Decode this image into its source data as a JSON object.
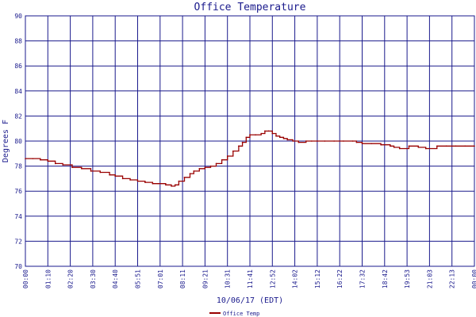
{
  "chart_data": {
    "type": "line",
    "title": "Office Temperature",
    "xlabel": "10/06/17 (EDT)",
    "ylabel": "Degrees F",
    "ylim": [
      70,
      90
    ],
    "yticks": [
      70,
      72,
      74,
      76,
      78,
      80,
      82,
      84,
      86,
      88,
      90
    ],
    "xticks": [
      "00:00",
      "01:10",
      "02:20",
      "03:30",
      "04:40",
      "05:51",
      "07:01",
      "08:11",
      "09:21",
      "10:31",
      "11:41",
      "12:52",
      "14:02",
      "15:12",
      "16:22",
      "17:32",
      "18:42",
      "19:53",
      "21:03",
      "22:13",
      "00:00"
    ],
    "grid": true,
    "legend": "bottom-left",
    "colors": {
      "line": "#990000",
      "grid": "#1a1a8c",
      "text": "#1a1a8c"
    },
    "series": [
      {
        "name": "Office Temp",
        "x": [
          0.0,
          0.4,
          0.8,
          1.2,
          1.6,
          2.0,
          2.5,
          3.0,
          3.5,
          4.0,
          4.5,
          4.8,
          5.2,
          5.6,
          6.0,
          6.4,
          6.8,
          7.1,
          7.5,
          7.8,
          8.0,
          8.2,
          8.5,
          8.8,
          9.0,
          9.3,
          9.6,
          9.9,
          10.2,
          10.5,
          10.8,
          11.1,
          11.4,
          11.6,
          11.8,
          12.0,
          12.3,
          12.6,
          12.8,
          13.0,
          13.2,
          13.4,
          13.6,
          13.8,
          14.0,
          14.3,
          14.6,
          15.0,
          15.3,
          15.6,
          16.0,
          16.5,
          17.0,
          17.5,
          17.7,
          18.0,
          18.5,
          19.0,
          19.5,
          19.7,
          20.0,
          20.5,
          21.0,
          21.4,
          22.0,
          22.5,
          23.0,
          23.5,
          24.0
        ],
        "values": [
          78.6,
          78.6,
          78.5,
          78.4,
          78.2,
          78.1,
          77.9,
          77.8,
          77.6,
          77.5,
          77.3,
          77.2,
          77.0,
          76.9,
          76.8,
          76.7,
          76.6,
          76.6,
          76.5,
          76.4,
          76.5,
          76.8,
          77.1,
          77.4,
          77.6,
          77.8,
          77.9,
          78.0,
          78.2,
          78.5,
          78.8,
          79.2,
          79.6,
          79.9,
          80.3,
          80.5,
          80.5,
          80.6,
          80.8,
          80.8,
          80.6,
          80.4,
          80.3,
          80.2,
          80.1,
          80.0,
          79.9,
          80.0,
          80.0,
          80.0,
          80.0,
          80.0,
          80.0,
          80.0,
          79.9,
          79.8,
          79.8,
          79.7,
          79.6,
          79.5,
          79.4,
          79.6,
          79.5,
          79.4,
          79.6,
          79.6,
          79.6,
          79.6,
          79.6
        ]
      }
    ]
  }
}
